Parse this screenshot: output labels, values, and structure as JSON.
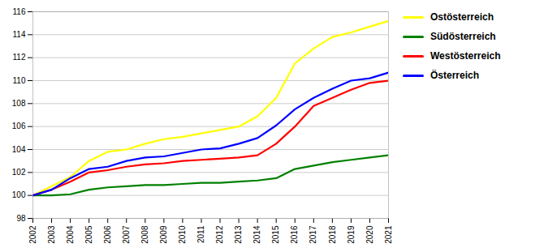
{
  "chart_data": {
    "type": "line",
    "x": [
      2002,
      2003,
      2004,
      2005,
      2006,
      2007,
      2008,
      2009,
      2010,
      2011,
      2012,
      2013,
      2014,
      2015,
      2016,
      2017,
      2018,
      2019,
      2020,
      2021
    ],
    "series": [
      {
        "name": "Ostösterreich",
        "color": "#ffff00",
        "values": [
          100.0,
          100.8,
          101.6,
          103.0,
          103.8,
          104.0,
          104.5,
          104.9,
          105.1,
          105.4,
          105.7,
          106.0,
          106.9,
          108.5,
          111.5,
          112.8,
          113.8,
          114.2,
          114.7,
          115.2
        ]
      },
      {
        "name": "Südösterreich",
        "color": "#008000",
        "values": [
          100.0,
          100.0,
          100.1,
          100.5,
          100.7,
          100.8,
          100.9,
          100.9,
          101.0,
          101.1,
          101.1,
          101.2,
          101.3,
          101.5,
          102.3,
          102.6,
          102.9,
          103.1,
          103.3,
          103.5
        ]
      },
      {
        "name": "Westösterreich",
        "color": "#ff0000",
        "values": [
          100.0,
          100.5,
          101.2,
          102.0,
          102.2,
          102.5,
          102.7,
          102.8,
          103.0,
          103.1,
          103.2,
          103.3,
          103.5,
          104.5,
          106.0,
          107.8,
          108.5,
          109.2,
          109.8,
          110.0
        ]
      },
      {
        "name": "Österreich",
        "color": "#0000ff",
        "values": [
          100.0,
          100.5,
          101.5,
          102.3,
          102.5,
          103.0,
          103.3,
          103.4,
          103.7,
          104.0,
          104.1,
          104.5,
          105.0,
          106.1,
          107.5,
          108.5,
          109.3,
          110.0,
          110.2,
          110.7
        ]
      }
    ],
    "xlim": [
      2002,
      2021
    ],
    "xticks": [
      2002,
      2003,
      2004,
      2005,
      2006,
      2007,
      2008,
      2009,
      2010,
      2011,
      2012,
      2013,
      2014,
      2015,
      2016,
      2017,
      2018,
      2019,
      2020,
      2021
    ],
    "ylim": [
      98,
      116
    ],
    "yticks": [
      98,
      100,
      102,
      104,
      106,
      108,
      110,
      112,
      114,
      116
    ],
    "grid": true,
    "legend": "right"
  }
}
